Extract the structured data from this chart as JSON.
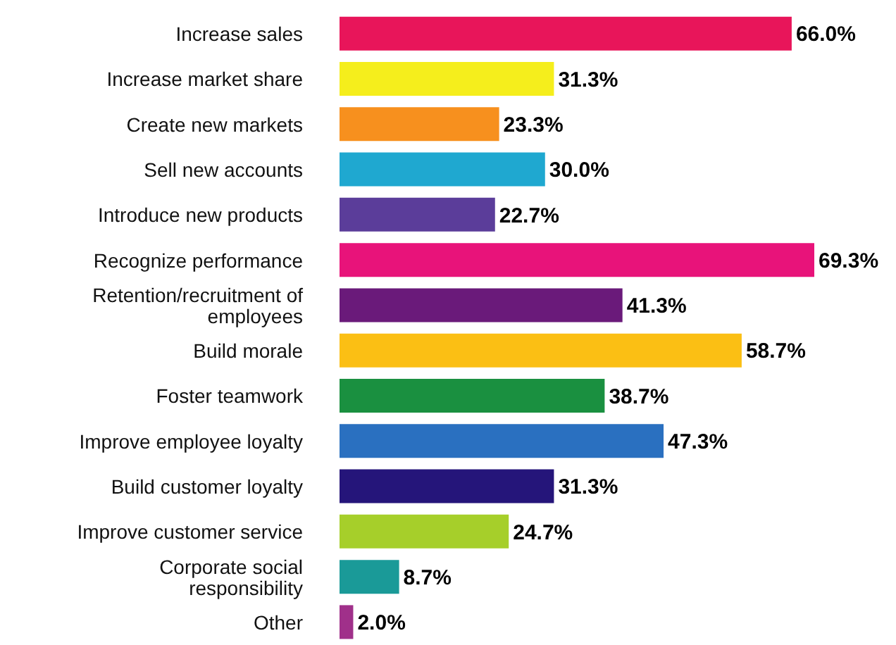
{
  "chart_data": {
    "type": "bar",
    "orientation": "horizontal",
    "categories": [
      "Increase sales",
      "Increase market share",
      "Create new markets",
      "Sell new accounts",
      "Introduce new products",
      "Recognize performance",
      "Retention/recruitment of employees",
      "Build morale",
      "Foster teamwork",
      "Improve employee loyalty",
      "Build customer loyalty",
      "Improve customer service",
      "Corporate social responsibility",
      "Other"
    ],
    "values": [
      66.0,
      31.3,
      23.3,
      30.0,
      22.7,
      69.3,
      41.3,
      58.7,
      38.7,
      47.3,
      31.3,
      24.7,
      8.7,
      2.0
    ],
    "value_labels": [
      "66.0%",
      "31.3%",
      "23.3%",
      "30.0%",
      "22.7%",
      "69.3%",
      "41.3%",
      "58.7%",
      "38.7%",
      "47.3%",
      "31.3%",
      "24.7%",
      "8.7%",
      "2.0%"
    ],
    "colors": [
      "#e8155a",
      "#f5ee1c",
      "#f7901e",
      "#1fa8d0",
      "#5b3d9a",
      "#e8137a",
      "#6a1a7a",
      "#fbbf14",
      "#1a9040",
      "#2a70c0",
      "#25157a",
      "#a6cf2a",
      "#1a9a98",
      "#a0308a"
    ],
    "grid": false,
    "legend": false
  }
}
